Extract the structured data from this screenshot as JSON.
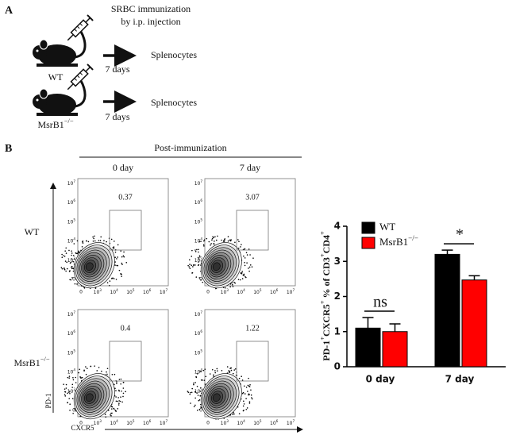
{
  "panel_a": {
    "label": "A",
    "injection": [
      "SRBC immunization",
      "by i.p. injection"
    ],
    "groups": [
      {
        "name": "WT",
        "duration": "7 days",
        "output": "Splenocytes"
      },
      {
        "name": "MsrB1",
        "name_sup": "−/−",
        "duration": "7 days",
        "output": "Splenocytes"
      }
    ]
  },
  "panel_b": {
    "label": "B",
    "header": "Post-immunization",
    "timepoints": [
      "0 day",
      "7 day"
    ],
    "rows": [
      {
        "name": "WT"
      },
      {
        "name": "MsrB1",
        "name_sup": "−/−"
      }
    ],
    "gates": [
      [
        0.37,
        3.07
      ],
      [
        0.4,
        1.22
      ]
    ],
    "y_axis": "PD-1",
    "x_axis": "CXCR5",
    "y_ticks": [
      "0",
      {
        "base": "10",
        "exp": "3"
      },
      {
        "base": "10",
        "exp": "4"
      },
      {
        "base": "10",
        "exp": "5"
      },
      {
        "base": "10",
        "exp": "6"
      },
      {
        "base": "10",
        "exp": "7"
      }
    ],
    "x_ticks": [
      "0",
      {
        "base": "10",
        "exp": "3"
      },
      {
        "base": "10",
        "exp": "4"
      },
      {
        "base": "10",
        "exp": "5"
      },
      {
        "base": "10",
        "exp": "6"
      },
      {
        "base": "10",
        "exp": "7"
      }
    ]
  },
  "chart_data": {
    "type": "bar",
    "categories": [
      "0 day",
      "7 day"
    ],
    "series": [
      {
        "name": "WT",
        "color": "#000000",
        "values": [
          1.1,
          3.2
        ],
        "errors": [
          0.3,
          0.12
        ]
      },
      {
        "name": "MsrB1",
        "name_sup": "−/−",
        "color": "#ff0000",
        "values": [
          1.0,
          2.47
        ],
        "errors": [
          0.22,
          0.12
        ]
      }
    ],
    "ylim": [
      0,
      4
    ],
    "yticks": [
      0,
      1,
      2,
      3,
      4
    ],
    "ylabel": [
      {
        "text": "PD-1",
        "sup": "+"
      },
      {
        "text": "CXCR5",
        "sup": "+"
      },
      {
        "text": " % of CD3",
        "sup": "+"
      },
      {
        "text": "CD4",
        "sup": "+"
      }
    ],
    "annotations": [
      "ns",
      "*"
    ]
  }
}
